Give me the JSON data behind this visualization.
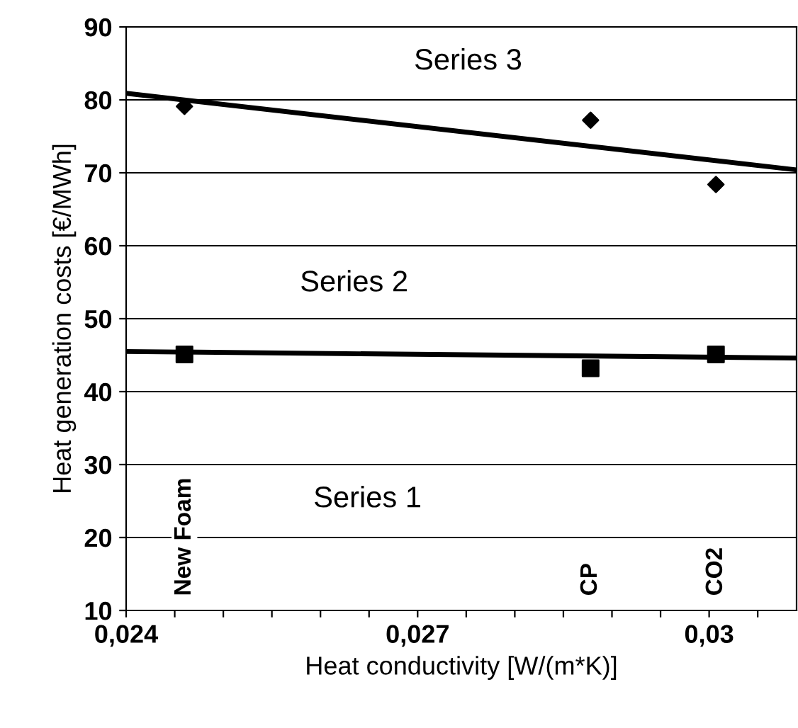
{
  "chart_data": {
    "type": "scatter",
    "xlabel": "Heat conductivity [W/(m*K)]",
    "ylabel": "Heat generation costs [€/MWh]",
    "series": [
      {
        "marker": "square",
        "color": "#000000",
        "x": [
          0.0246,
          0.02878,
          0.03007
        ],
        "values": [
          45.1,
          43.2,
          45.1
        ]
      },
      {
        "marker": "diamond",
        "color": "#000000",
        "x": [
          0.0246,
          0.02878,
          0.03007
        ],
        "values": [
          79.1,
          77.2,
          68.4
        ]
      },
      {
        "type": "line",
        "marker": "none",
        "color": "#000000",
        "x": [
          0.024,
          0.0309
        ],
        "values": [
          45.5,
          44.6
        ]
      },
      {
        "type": "line",
        "marker": "none",
        "color": "#000000",
        "x": [
          0.024,
          0.0309
        ],
        "values": [
          80.9,
          70.4
        ]
      }
    ],
    "xlim": [
      0.024,
      0.0309
    ],
    "xticks": [
      {
        "value": 0.024,
        "label": "0,024"
      },
      {
        "value": 0.0245,
        "label": null
      },
      {
        "value": 0.025,
        "label": null
      },
      {
        "value": 0.0255,
        "label": null
      },
      {
        "value": 0.026,
        "label": null
      },
      {
        "value": 0.0265,
        "label": null
      },
      {
        "value": 0.027,
        "label": "0,027"
      },
      {
        "value": 0.0275,
        "label": null
      },
      {
        "value": 0.028,
        "label": null
      },
      {
        "value": 0.0285,
        "label": null
      },
      {
        "value": 0.029,
        "label": null
      },
      {
        "value": 0.0295,
        "label": null
      },
      {
        "value": 0.03,
        "label": "0,03"
      },
      {
        "value": 0.0305,
        "label": null
      }
    ],
    "ylim": [
      10,
      90
    ],
    "yticks": [
      10,
      20,
      30,
      40,
      50,
      60,
      70,
      80,
      90
    ],
    "grid": "y",
    "annotations": [
      "Series 3",
      "Series 2",
      "Series 1",
      "New Foam",
      "CP",
      "CO2"
    ]
  }
}
